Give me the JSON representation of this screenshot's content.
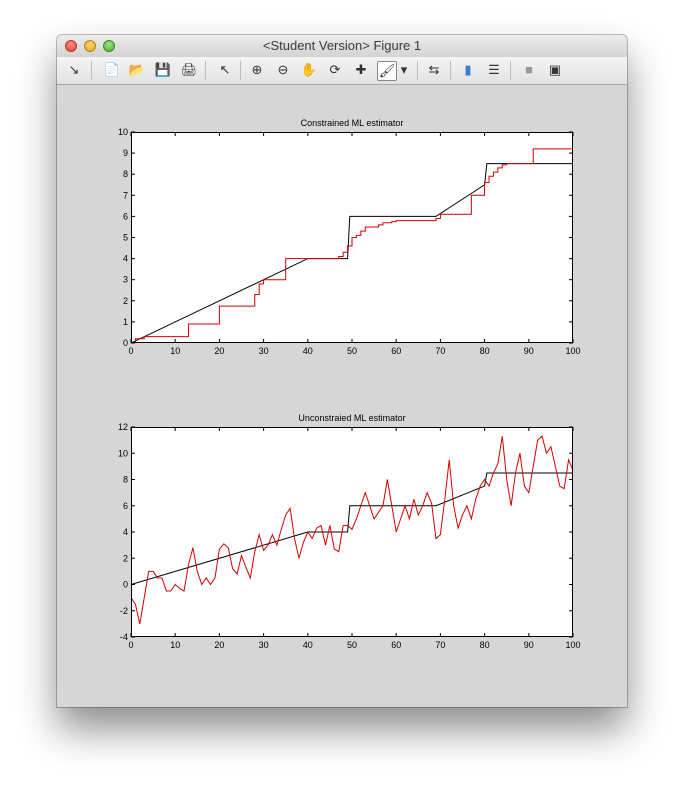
{
  "window": {
    "title": "<Student Version> Figure 1"
  },
  "toolbar": {
    "tools": [
      {
        "name": "dock-arrow-icon",
        "glyph": "↘"
      },
      {
        "name": "new-figure-icon",
        "glyph": "📄"
      },
      {
        "name": "open-file-icon",
        "glyph": "📂"
      },
      {
        "name": "save-icon",
        "glyph": "💾"
      },
      {
        "name": "print-icon",
        "glyph": "🖨"
      },
      {
        "name": "edit-pointer-icon",
        "glyph": "↖"
      },
      {
        "name": "zoom-in-icon",
        "glyph": "⊕"
      },
      {
        "name": "zoom-out-icon",
        "glyph": "⊖"
      },
      {
        "name": "pan-hand-icon",
        "glyph": "✋"
      },
      {
        "name": "rotate-3d-icon",
        "glyph": "⟳"
      },
      {
        "name": "data-cursor-icon",
        "glyph": "✚"
      },
      {
        "name": "brush-icon",
        "glyph": "🖌"
      },
      {
        "name": "brush-dropdown-icon",
        "glyph": "▾"
      },
      {
        "name": "link-plot-icon",
        "glyph": "⇆"
      },
      {
        "name": "colorbar-icon",
        "glyph": "▮"
      },
      {
        "name": "legend-icon",
        "glyph": "☰"
      },
      {
        "name": "hide-plot-tools-icon",
        "glyph": "■"
      },
      {
        "name": "show-plot-tools-icon",
        "glyph": "▣"
      }
    ]
  },
  "chart_data": [
    {
      "type": "line",
      "title": "Constrained ML estimator",
      "xlim": [
        0,
        100
      ],
      "ylim": [
        0,
        10
      ],
      "xticks": [
        0,
        10,
        20,
        30,
        40,
        50,
        60,
        70,
        80,
        90,
        100
      ],
      "yticks": [
        0,
        1,
        2,
        3,
        4,
        5,
        6,
        7,
        8,
        9,
        10
      ],
      "series": [
        {
          "color": "#000000",
          "step": false,
          "x": [
            0,
            40,
            49,
            49.5,
            50,
            69,
            80,
            80.5,
            100
          ],
          "y": [
            0,
            4,
            4,
            6,
            6,
            6,
            7.5,
            8.5,
            8.5
          ]
        },
        {
          "color": "#d40000",
          "step": true,
          "x": [
            0,
            1,
            2,
            3,
            12,
            13,
            19,
            20,
            27,
            28,
            29,
            30,
            34,
            35,
            46,
            47,
            48,
            49,
            50,
            51,
            52,
            53,
            56,
            57,
            59,
            60,
            68,
            69,
            70,
            76,
            77,
            79,
            80,
            81,
            82,
            83,
            84,
            85,
            90,
            91,
            100
          ],
          "y": [
            0,
            0.2,
            0.2,
            0.3,
            0.3,
            0.9,
            0.9,
            1.75,
            1.75,
            2.3,
            2.8,
            3,
            3,
            4,
            4,
            4.1,
            4.3,
            4.6,
            5,
            5.1,
            5.3,
            5.5,
            5.6,
            5.7,
            5.75,
            5.8,
            5.8,
            5.9,
            6.1,
            6.1,
            7,
            7,
            7.6,
            7.9,
            8.1,
            8.3,
            8.45,
            8.5,
            8.5,
            9.2,
            9.2
          ]
        }
      ]
    },
    {
      "type": "line",
      "title": "Unconstraied ML estimator",
      "xlim": [
        0,
        100
      ],
      "ylim": [
        -4,
        12
      ],
      "xticks": [
        0,
        10,
        20,
        30,
        40,
        50,
        60,
        70,
        80,
        90,
        100
      ],
      "yticks": [
        -4,
        -2,
        0,
        2,
        4,
        6,
        8,
        10,
        12
      ],
      "series": [
        {
          "color": "#000000",
          "step": false,
          "x": [
            0,
            40,
            49,
            49.5,
            50,
            69,
            80,
            80.5,
            100
          ],
          "y": [
            0,
            4,
            4,
            6,
            6,
            6,
            7.5,
            8.5,
            8.5
          ]
        },
        {
          "color": "#d40000",
          "step": false,
          "x": [
            0,
            1,
            2,
            3,
            4,
            5,
            6,
            7,
            8,
            9,
            10,
            11,
            12,
            13,
            14,
            15,
            16,
            17,
            18,
            19,
            20,
            21,
            22,
            23,
            24,
            25,
            26,
            27,
            28,
            29,
            30,
            31,
            32,
            33,
            34,
            35,
            36,
            37,
            38,
            39,
            40,
            41,
            42,
            43,
            44,
            45,
            46,
            47,
            48,
            49,
            50,
            51,
            52,
            53,
            54,
            55,
            56,
            57,
            58,
            59,
            60,
            61,
            62,
            63,
            64,
            65,
            66,
            67,
            68,
            69,
            70,
            71,
            72,
            73,
            74,
            75,
            76,
            77,
            78,
            79,
            80,
            81,
            82,
            83,
            84,
            85,
            86,
            87,
            88,
            89,
            90,
            91,
            92,
            93,
            94,
            95,
            96,
            97,
            98,
            99,
            100
          ],
          "y": [
            -1,
            -1.5,
            -3,
            -1,
            1,
            1,
            0.5,
            0.5,
            -0.5,
            -0.5,
            0,
            -0.3,
            -0.5,
            1.5,
            2.8,
            1,
            0,
            0.5,
            0,
            0.5,
            2.7,
            3.1,
            2.8,
            1.2,
            0.8,
            2.2,
            1.3,
            0.5,
            2.5,
            3.8,
            2.6,
            3,
            3.8,
            3,
            4.2,
            5.3,
            5.8,
            3.5,
            2,
            3.2,
            4,
            3.5,
            4.3,
            4.5,
            3,
            4.5,
            2.7,
            2.5,
            4.5,
            4.5,
            4.2,
            5,
            6,
            7,
            6,
            5,
            5.5,
            6,
            8,
            6,
            4,
            5,
            6,
            5,
            6.5,
            5.3,
            6,
            7,
            6.2,
            3.5,
            3.8,
            6.5,
            9.5,
            6,
            4.3,
            5.3,
            6,
            5,
            6.5,
            7.5,
            8,
            7.5,
            8.5,
            9.2,
            11.3,
            8,
            6,
            8.5,
            10,
            7.5,
            7,
            9,
            11,
            11.3,
            10,
            10.5,
            9,
            7.5,
            7.3,
            9.5,
            8.7
          ]
        }
      ]
    }
  ]
}
